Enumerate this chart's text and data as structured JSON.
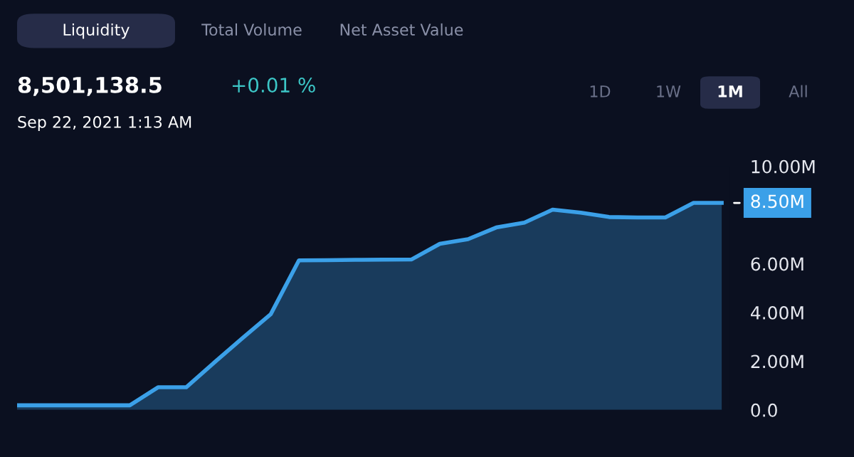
{
  "chart_data": {
    "type": "area",
    "title": "8,501,138.5",
    "subtitle": "Sep 22, 2021 1:13 AM",
    "annotations": [
      "+0.01 %",
      "Liquidity",
      "Total Volume",
      "Net Asset Value",
      "1D",
      "1W",
      "1M",
      "All",
      "8.50M"
    ],
    "categories": [
      null,
      null,
      null,
      null,
      null,
      null,
      null,
      null,
      null,
      null,
      null,
      null,
      null,
      null,
      null,
      null,
      null,
      null,
      null,
      null,
      null,
      null,
      null,
      null,
      null,
      null
    ],
    "series": [
      {
        "color": "#3ba0e8",
        "values": [
          0.19,
          0.19,
          0.19,
          0.19,
          0.19,
          0.93,
          0.93,
          1.95,
          2.95,
          3.93,
          6.14,
          6.15,
          6.16,
          6.17,
          6.18,
          6.82,
          7.01,
          7.49,
          7.69,
          8.22,
          8.1,
          7.92,
          7.9,
          7.9,
          8.5,
          8.5
        ]
      }
    ],
    "ylim": [
      0,
      10
    ],
    "yticks": [
      {
        "value": 0,
        "label": "0.0"
      },
      {
        "value": 2,
        "label": "2.00M"
      },
      {
        "value": 4,
        "label": "4.00M"
      },
      {
        "value": 6,
        "label": "6.00M"
      },
      {
        "value": 10,
        "label": "10.00M"
      }
    ],
    "tick_labels": "y",
    "grid": false
  }
}
